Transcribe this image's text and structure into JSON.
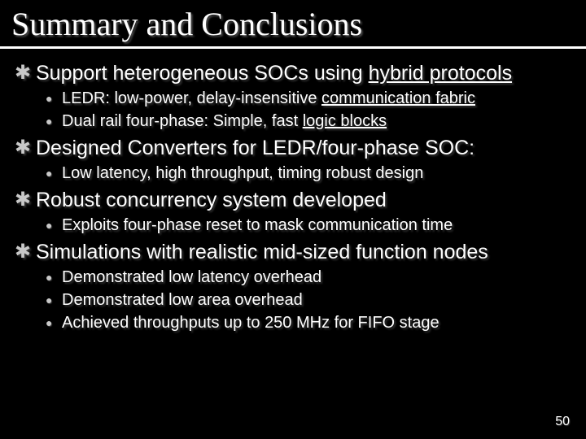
{
  "title": "Summary and Conclusions",
  "page_number": "50",
  "colors": {
    "background": "#000000",
    "text": "#ffffff",
    "bullet": "#c8c8c8",
    "rule": "#ffffff"
  },
  "typography": {
    "title_family": "Times New Roman",
    "body_family": "Verdana",
    "title_size_pt": 32,
    "l1_size_pt": 20,
    "l2_size_pt": 16
  },
  "items": [
    {
      "text_pre": "Support heterogeneous SOCs using ",
      "text_ul": "hybrid protocols",
      "sub": [
        {
          "text_pre": "LEDR: low-power, delay-insensitive ",
          "text_ul": "communication fabric"
        },
        {
          "text_pre": "Dual rail four-phase: Simple, fast ",
          "text_ul": "logic blocks"
        }
      ]
    },
    {
      "text_pre": "Designed Converters for LEDR/four-phase SOC:",
      "text_ul": "",
      "sub": [
        {
          "text_pre": "Low latency, high throughput, timing robust design",
          "text_ul": ""
        }
      ]
    },
    {
      "text_pre": "Robust concurrency system developed",
      "text_ul": "",
      "sub": [
        {
          "text_pre": "Exploits four-phase reset to mask communication time",
          "text_ul": ""
        }
      ]
    },
    {
      "text_pre": "Simulations with realistic mid-sized function nodes",
      "text_ul": "",
      "sub": [
        {
          "text_pre": "Demonstrated low latency overhead",
          "text_ul": ""
        },
        {
          "text_pre": "Demonstrated low area overhead",
          "text_ul": ""
        },
        {
          "text_pre": "Achieved throughputs up to 250 MHz for FIFO stage",
          "text_ul": ""
        }
      ]
    }
  ]
}
